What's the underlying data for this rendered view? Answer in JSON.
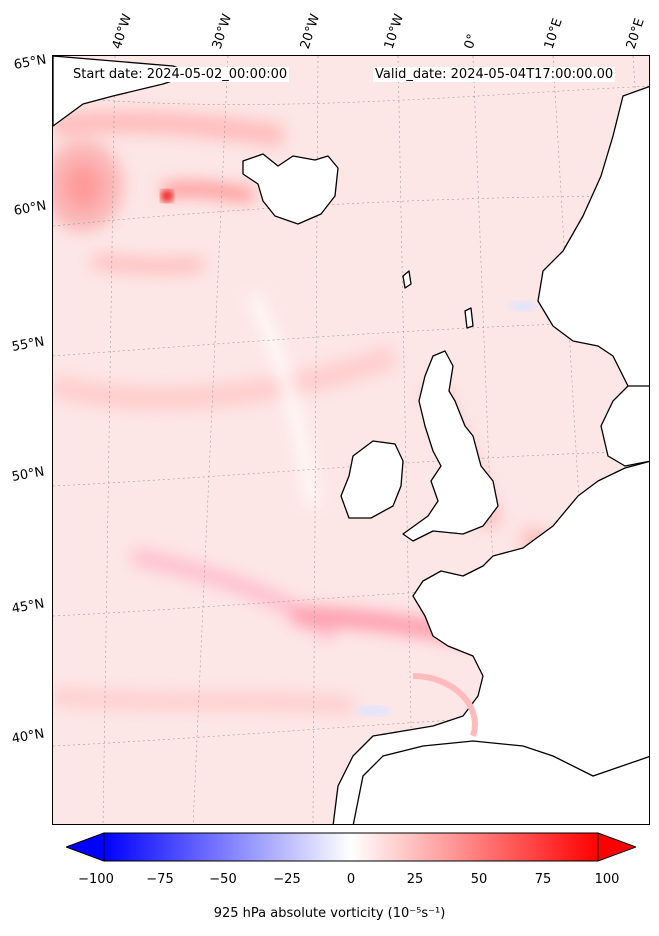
{
  "map": {
    "start_date": "Start date: 2024-05-02_00:00:00",
    "valid_date": "Valid_date: 2024-05-04T17:00:00.00",
    "lon_labels": [
      "40°W",
      "30°W",
      "20°W",
      "10°W",
      "0°",
      "10°E",
      "20°E"
    ],
    "lat_labels": [
      "65°N",
      "60°N",
      "55°N",
      "50°N",
      "45°N",
      "40°N"
    ],
    "colors": {
      "land_outline": "#000000",
      "positive": "#ff0000",
      "negative": "#0000ff",
      "neutral": "#ffffff"
    }
  },
  "colorbar": {
    "ticks": [
      "−100",
      "−75",
      "−50",
      "−25",
      "0",
      "25",
      "50",
      "75",
      "100"
    ],
    "range": [
      -100,
      100
    ],
    "label": "925 hPa absolute vorticity (10⁻⁵s⁻¹)"
  }
}
